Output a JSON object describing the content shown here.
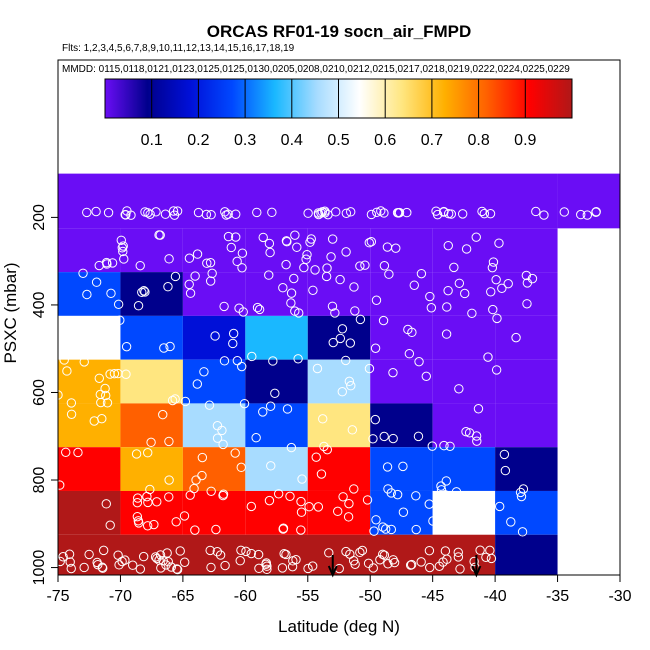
{
  "chart_data": {
    "type": "heatmap",
    "title": "ORCAS RF01-19 socn_air_FMPD",
    "flights_line": "Flts: 1,2,3,4,5,6,7,8,9,10,11,12,13,14,15,16,17,18,19",
    "dates_line": "MMDD: 0115,0118,0121,0123,0125,0125,0130,0205,0208,0210,0212,0215,0217,0218,0219,0222,0224,0225,0229",
    "xlabel": "Latitude (deg N)",
    "ylabel": "PSXC (mbar)",
    "xlim": [
      -75,
      -30
    ],
    "ylim": [
      1000,
      100
    ],
    "x_ticks": [
      -75,
      -70,
      -65,
      -60,
      -55,
      -50,
      -45,
      -40,
      -35,
      -30
    ],
    "y_ticks": [
      200,
      400,
      600,
      800,
      1000
    ],
    "colorbar": {
      "range": [
        0,
        1
      ],
      "ticks": [
        0.1,
        0.2,
        0.3,
        0.4,
        0.5,
        0.6,
        0.7,
        0.8,
        0.9
      ],
      "colors": [
        "#6a0df5",
        "#00008c",
        "#0010d8",
        "#0048ff",
        "#1ab8ff",
        "#a8dcff",
        "#ffffff",
        "#ffe680",
        "#ffb000",
        "#ff6000",
        "#ff0000",
        "#b01818"
      ]
    },
    "arrows_at_latitude": [
      -53,
      -41.5
    ],
    "cells": [
      {
        "lat": [
          -75,
          -35
        ],
        "p": [
          100,
          225
        ],
        "v": 0.0
      },
      {
        "lat": [
          -35,
          -30
        ],
        "p": [
          100,
          225
        ],
        "v": 0.0
      },
      {
        "lat": [
          -75,
          -70
        ],
        "p": [
          225,
          325
        ],
        "v": 0.02
      },
      {
        "lat": [
          -70,
          -65
        ],
        "p": [
          225,
          325
        ],
        "v": 0.05
      },
      {
        "lat": [
          -65,
          -60
        ],
        "p": [
          225,
          325
        ],
        "v": 0.06
      },
      {
        "lat": [
          -60,
          -55
        ],
        "p": [
          225,
          325
        ],
        "v": 0.0
      },
      {
        "lat": [
          -55,
          -50
        ],
        "p": [
          225,
          325
        ],
        "v": 0.0
      },
      {
        "lat": [
          -50,
          -45
        ],
        "p": [
          225,
          325
        ],
        "v": 0.0
      },
      {
        "lat": [
          -45,
          -35
        ],
        "p": [
          225,
          325
        ],
        "v": 0.0
      },
      {
        "lat": [
          -75,
          -70
        ],
        "p": [
          325,
          425
        ],
        "v": 0.28
      },
      {
        "lat": [
          -70,
          -65
        ],
        "p": [
          325,
          425
        ],
        "v": 0.15
      },
      {
        "lat": [
          -65,
          -60
        ],
        "p": [
          325,
          425
        ],
        "v": 0.05
      },
      {
        "lat": [
          -60,
          -55
        ],
        "p": [
          325,
          425
        ],
        "v": 0.06
      },
      {
        "lat": [
          -55,
          -50
        ],
        "p": [
          325,
          425
        ],
        "v": 0.05
      },
      {
        "lat": [
          -50,
          -45
        ],
        "p": [
          325,
          425
        ],
        "v": 0.04
      },
      {
        "lat": [
          -45,
          -35
        ],
        "p": [
          325,
          425
        ],
        "v": 0.0
      },
      {
        "lat": [
          -75,
          -70
        ],
        "p": [
          425,
          525
        ],
        "v": 0.55
      },
      {
        "lat": [
          -70,
          -65
        ],
        "p": [
          425,
          525
        ],
        "v": 0.28
      },
      {
        "lat": [
          -65,
          -60
        ],
        "p": [
          425,
          525
        ],
        "v": 0.2
      },
      {
        "lat": [
          -60,
          -55
        ],
        "p": [
          425,
          525
        ],
        "v": 0.4
      },
      {
        "lat": [
          -55,
          -50
        ],
        "p": [
          425,
          525
        ],
        "v": 0.15
      },
      {
        "lat": [
          -50,
          -45
        ],
        "p": [
          425,
          525
        ],
        "v": 0.06
      },
      {
        "lat": [
          -45,
          -40
        ],
        "p": [
          425,
          525
        ],
        "v": 0.04
      },
      {
        "lat": [
          -40,
          -35
        ],
        "p": [
          425,
          525
        ],
        "v": 0.0
      },
      {
        "lat": [
          -75,
          -70
        ],
        "p": [
          525,
          625
        ],
        "v": 0.74
      },
      {
        "lat": [
          -70,
          -65
        ],
        "p": [
          525,
          625
        ],
        "v": 0.6
      },
      {
        "lat": [
          -65,
          -60
        ],
        "p": [
          525,
          625
        ],
        "v": 0.3
      },
      {
        "lat": [
          -60,
          -55
        ],
        "p": [
          525,
          625
        ],
        "v": 0.1
      },
      {
        "lat": [
          -55,
          -50
        ],
        "p": [
          525,
          625
        ],
        "v": 0.48
      },
      {
        "lat": [
          -50,
          -45
        ],
        "p": [
          525,
          625
        ],
        "v": 0.06
      },
      {
        "lat": [
          -45,
          -40
        ],
        "p": [
          525,
          625
        ],
        "v": 0.04
      },
      {
        "lat": [
          -40,
          -35
        ],
        "p": [
          525,
          625
        ],
        "v": 0.0
      },
      {
        "lat": [
          -75,
          -70
        ],
        "p": [
          625,
          725
        ],
        "v": 0.72
      },
      {
        "lat": [
          -70,
          -65
        ],
        "p": [
          625,
          725
        ],
        "v": 0.76
      },
      {
        "lat": [
          -65,
          -60
        ],
        "p": [
          625,
          725
        ],
        "v": 0.45
      },
      {
        "lat": [
          -60,
          -55
        ],
        "p": [
          625,
          725
        ],
        "v": 0.3
      },
      {
        "lat": [
          -55,
          -50
        ],
        "p": [
          625,
          725
        ],
        "v": 0.6
      },
      {
        "lat": [
          -50,
          -45
        ],
        "p": [
          625,
          725
        ],
        "v": 0.15
      },
      {
        "lat": [
          -45,
          -40
        ],
        "p": [
          625,
          725
        ],
        "v": 0.08
      },
      {
        "lat": [
          -40,
          -35
        ],
        "p": [
          625,
          725
        ],
        "v": 0.05
      },
      {
        "lat": [
          -75,
          -70
        ],
        "p": [
          725,
          825
        ],
        "v": 0.85
      },
      {
        "lat": [
          -70,
          -65
        ],
        "p": [
          725,
          825
        ],
        "v": 0.68
      },
      {
        "lat": [
          -65,
          -60
        ],
        "p": [
          725,
          825
        ],
        "v": 0.8
      },
      {
        "lat": [
          -60,
          -55
        ],
        "p": [
          725,
          825
        ],
        "v": 0.45
      },
      {
        "lat": [
          -55,
          -50
        ],
        "p": [
          725,
          825
        ],
        "v": 0.86
      },
      {
        "lat": [
          -50,
          -45
        ],
        "p": [
          725,
          825
        ],
        "v": 0.25
      },
      {
        "lat": [
          -45,
          -40
        ],
        "p": [
          725,
          825
        ],
        "v": 0.25
      },
      {
        "lat": [
          -40,
          -35
        ],
        "p": [
          725,
          825
        ],
        "v": 0.1
      },
      {
        "lat": [
          -75,
          -70
        ],
        "p": [
          825,
          925
        ],
        "v": 0.95
      },
      {
        "lat": [
          -70,
          -65
        ],
        "p": [
          825,
          925
        ],
        "v": 0.86
      },
      {
        "lat": [
          -65,
          -60
        ],
        "p": [
          825,
          925
        ],
        "v": 0.87
      },
      {
        "lat": [
          -60,
          -55
        ],
        "p": [
          825,
          925
        ],
        "v": 0.86
      },
      {
        "lat": [
          -55,
          -50
        ],
        "p": [
          825,
          925
        ],
        "v": 0.87
      },
      {
        "lat": [
          -50,
          -45
        ],
        "p": [
          825,
          925
        ],
        "v": 0.25
      },
      {
        "lat": [
          -45,
          -40
        ],
        "p": [
          825,
          925
        ],
        "v": 0.5
      },
      {
        "lat": [
          -40,
          -35
        ],
        "p": [
          825,
          925
        ],
        "v": 0.25
      },
      {
        "lat": [
          -75,
          -40
        ],
        "p": [
          925,
          1025
        ],
        "v": 0.96
      },
      {
        "lat": [
          -40,
          -35
        ],
        "p": [
          925,
          1025
        ],
        "v": 0.1
      }
    ]
  }
}
